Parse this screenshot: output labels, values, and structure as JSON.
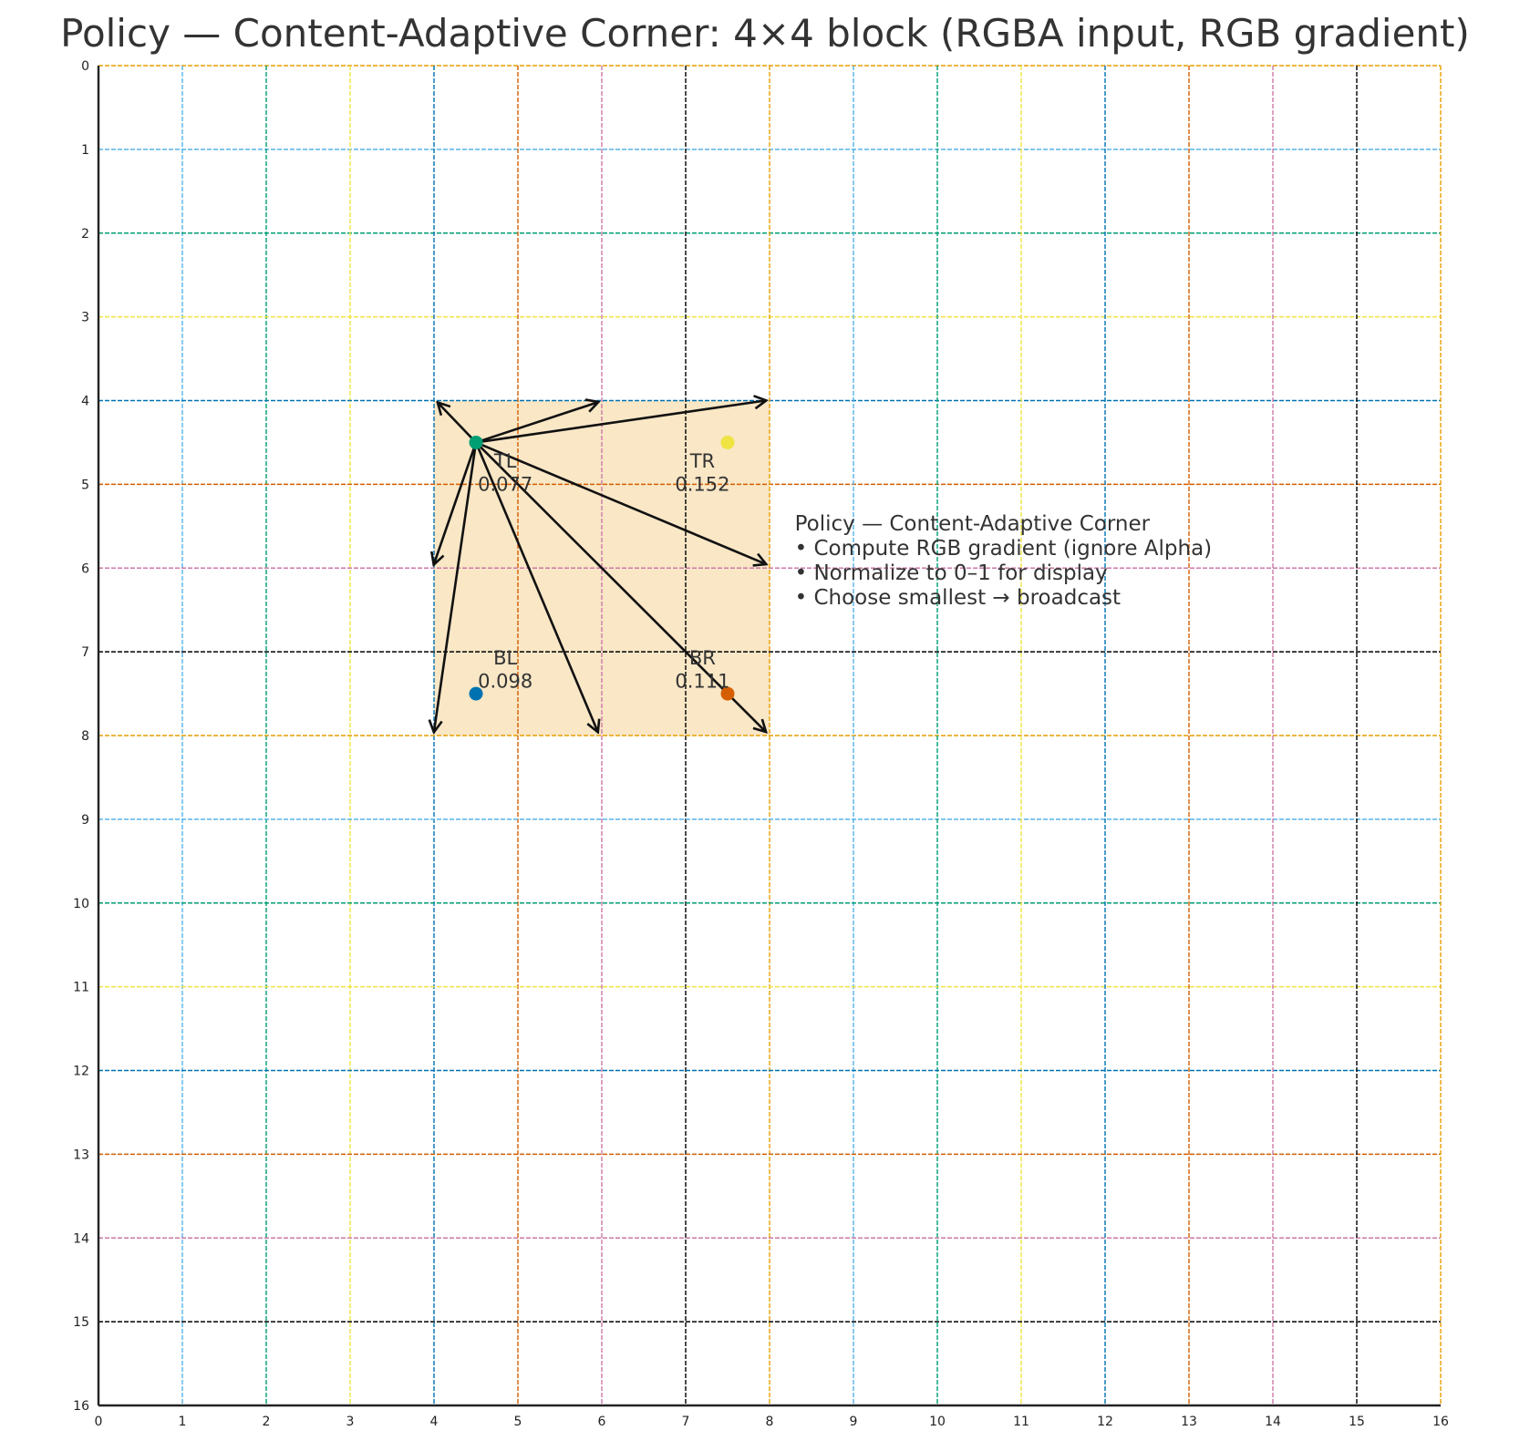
{
  "title": "Policy — Content-Adaptive Corner: 4×4 block (RGBA input, RGB gradient)",
  "grid": {
    "size": 16,
    "line_colors": [
      "#56B4E9",
      "#009E73",
      "#F0E442",
      "#0072B2",
      "#D55E00",
      "#CC79A7",
      "#000000",
      "#E69F00"
    ],
    "tick_labels": [
      "0",
      "1",
      "2",
      "3",
      "4",
      "5",
      "6",
      "7",
      "8",
      "9",
      "10",
      "11",
      "12",
      "13",
      "14",
      "15",
      "16"
    ]
  },
  "block": {
    "x0": 4,
    "y0": 4,
    "x1": 8,
    "y1": 8,
    "fill": "#F9E7C6"
  },
  "corners": [
    {
      "id": "tl",
      "name": "TL",
      "value": "0.077",
      "x": 4.5,
      "y": 4.5,
      "color": "#009E73",
      "label_x": 4.85,
      "label_y": 4.8,
      "value_y": 5.08
    },
    {
      "id": "tr",
      "name": "TR",
      "value": "0.152",
      "x": 7.5,
      "y": 4.5,
      "color": "#F0E442",
      "label_x": 7.2,
      "label_y": 4.8,
      "value_y": 5.08
    },
    {
      "id": "bl",
      "name": "BL",
      "value": "0.098",
      "x": 4.5,
      "y": 7.5,
      "color": "#0072B2",
      "label_x": 4.85,
      "label_y": 7.15,
      "value_y": 7.43
    },
    {
      "id": "br",
      "name": "BR",
      "value": "0.111",
      "x": 7.5,
      "y": 7.5,
      "color": "#D55E00",
      "label_x": 7.2,
      "label_y": 7.15,
      "value_y": 7.43
    }
  ],
  "arrows": [
    {
      "from": [
        4.5,
        4.5
      ],
      "to": [
        4.05,
        4.03
      ]
    },
    {
      "from": [
        4.5,
        4.5
      ],
      "to": [
        5.95,
        4.02
      ]
    },
    {
      "from": [
        4.5,
        4.5
      ],
      "to": [
        7.95,
        4.0
      ]
    },
    {
      "from": [
        4.5,
        4.5
      ],
      "to": [
        4.0,
        5.95
      ]
    },
    {
      "from": [
        4.5,
        4.5
      ],
      "to": [
        7.95,
        5.95
      ]
    },
    {
      "from": [
        4.5,
        4.5
      ],
      "to": [
        4.0,
        7.95
      ]
    },
    {
      "from": [
        4.5,
        4.5
      ],
      "to": [
        5.95,
        7.95
      ]
    },
    {
      "from": [
        4.5,
        4.5
      ],
      "to": [
        7.95,
        7.95
      ]
    }
  ],
  "note": {
    "lines": [
      "Policy — Content-Adaptive Corner",
      "• Compute RGB gradient (ignore Alpha)",
      "• Normalize to 0–1 for display",
      "• Choose smallest → broadcast"
    ],
    "x": 8.3,
    "y": 5.55
  }
}
